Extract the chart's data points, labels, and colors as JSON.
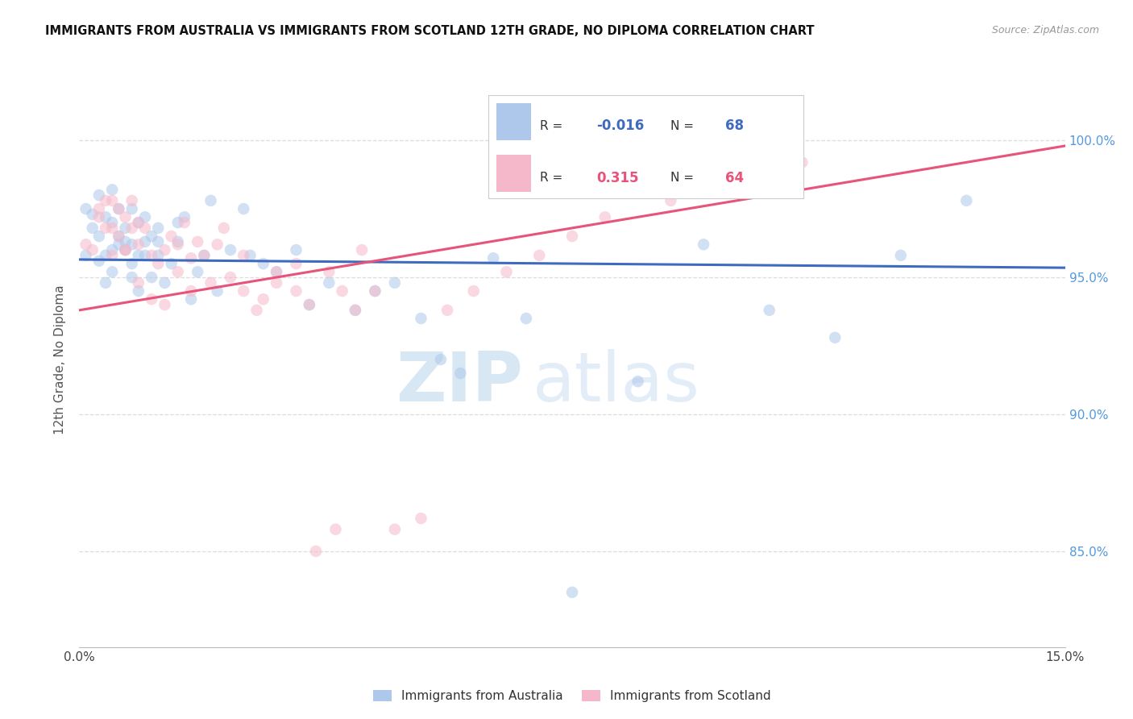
{
  "title": "IMMIGRANTS FROM AUSTRALIA VS IMMIGRANTS FROM SCOTLAND 12TH GRADE, NO DIPLOMA CORRELATION CHART",
  "source": "Source: ZipAtlas.com",
  "ylabel": "12th Grade, No Diploma",
  "ytick_labels": [
    "85.0%",
    "90.0%",
    "95.0%",
    "100.0%"
  ],
  "ytick_values": [
    0.85,
    0.9,
    0.95,
    1.0
  ],
  "xlim": [
    0.0,
    0.15
  ],
  "ylim": [
    0.815,
    1.025
  ],
  "australia_x": [
    0.001,
    0.002,
    0.003,
    0.003,
    0.004,
    0.004,
    0.005,
    0.005,
    0.005,
    0.006,
    0.006,
    0.007,
    0.007,
    0.008,
    0.008,
    0.008,
    0.009,
    0.009,
    0.01,
    0.01,
    0.011,
    0.011,
    0.012,
    0.012,
    0.013,
    0.014,
    0.015,
    0.016,
    0.017,
    0.018,
    0.019,
    0.021,
    0.023,
    0.026,
    0.028,
    0.03,
    0.033,
    0.035,
    0.038,
    0.042,
    0.045,
    0.048,
    0.052,
    0.055,
    0.058,
    0.063,
    0.068,
    0.075,
    0.085,
    0.095,
    0.105,
    0.115,
    0.125,
    0.135,
    0.001,
    0.002,
    0.003,
    0.004,
    0.005,
    0.006,
    0.007,
    0.008,
    0.009,
    0.01,
    0.012,
    0.015,
    0.02,
    0.025
  ],
  "australia_y": [
    0.975,
    0.968,
    0.98,
    0.965,
    0.972,
    0.958,
    0.97,
    0.982,
    0.96,
    0.965,
    0.975,
    0.96,
    0.968,
    0.975,
    0.962,
    0.95,
    0.958,
    0.97,
    0.963,
    0.972,
    0.965,
    0.95,
    0.958,
    0.968,
    0.948,
    0.955,
    0.963,
    0.972,
    0.942,
    0.952,
    0.958,
    0.945,
    0.96,
    0.958,
    0.955,
    0.952,
    0.96,
    0.94,
    0.948,
    0.938,
    0.945,
    0.948,
    0.935,
    0.92,
    0.915,
    0.957,
    0.935,
    0.835,
    0.912,
    0.962,
    0.938,
    0.928,
    0.958,
    0.978,
    0.958,
    0.973,
    0.956,
    0.948,
    0.952,
    0.962,
    0.963,
    0.955,
    0.945,
    0.958,
    0.963,
    0.97,
    0.978,
    0.975
  ],
  "scotland_x": [
    0.001,
    0.002,
    0.003,
    0.004,
    0.004,
    0.005,
    0.005,
    0.006,
    0.006,
    0.007,
    0.007,
    0.008,
    0.008,
    0.009,
    0.009,
    0.01,
    0.011,
    0.012,
    0.013,
    0.014,
    0.015,
    0.016,
    0.017,
    0.018,
    0.02,
    0.022,
    0.025,
    0.028,
    0.03,
    0.033,
    0.035,
    0.038,
    0.04,
    0.043,
    0.003,
    0.005,
    0.007,
    0.009,
    0.011,
    0.013,
    0.015,
    0.017,
    0.019,
    0.021,
    0.023,
    0.025,
    0.027,
    0.03,
    0.033,
    0.036,
    0.039,
    0.042,
    0.045,
    0.048,
    0.052,
    0.056,
    0.06,
    0.065,
    0.07,
    0.075,
    0.08,
    0.09,
    0.1,
    0.11
  ],
  "scotland_y": [
    0.962,
    0.96,
    0.972,
    0.968,
    0.978,
    0.958,
    0.968,
    0.965,
    0.975,
    0.96,
    0.972,
    0.968,
    0.978,
    0.962,
    0.97,
    0.968,
    0.958,
    0.955,
    0.96,
    0.965,
    0.962,
    0.97,
    0.957,
    0.963,
    0.948,
    0.968,
    0.958,
    0.942,
    0.952,
    0.945,
    0.94,
    0.952,
    0.945,
    0.96,
    0.975,
    0.978,
    0.96,
    0.948,
    0.942,
    0.94,
    0.952,
    0.945,
    0.958,
    0.962,
    0.95,
    0.945,
    0.938,
    0.948,
    0.955,
    0.85,
    0.858,
    0.938,
    0.945,
    0.858,
    0.862,
    0.938,
    0.945,
    0.952,
    0.958,
    0.965,
    0.972,
    0.978,
    0.985,
    0.992
  ],
  "australia_line_x": [
    0.0,
    0.15
  ],
  "australia_line_y": [
    0.9565,
    0.9535
  ],
  "scotland_line_x": [
    0.0,
    0.15
  ],
  "scotland_line_y": [
    0.938,
    0.998
  ],
  "watermark_zip": "ZIP",
  "watermark_atlas": "atlas",
  "dot_size": 110,
  "dot_alpha": 0.55,
  "line_color_australia": "#3f6bbf",
  "line_color_scotland": "#e8537a",
  "dot_color_australia": "#adc8ea",
  "dot_color_scotland": "#f5b8ca",
  "grid_color": "#dddddd",
  "right_axis_color": "#5599dd",
  "legend_R_australia": "-0.016",
  "legend_N_australia": "68",
  "legend_R_scotland": "0.315",
  "legend_N_scotland": "64"
}
